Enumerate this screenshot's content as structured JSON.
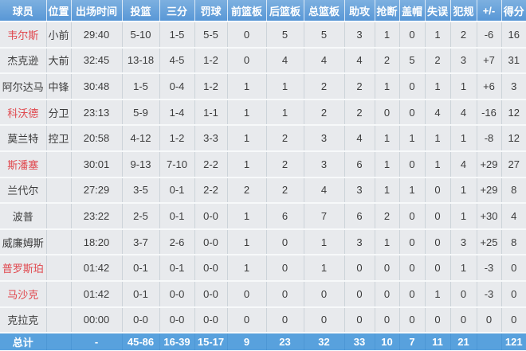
{
  "colors": {
    "header_bg_top": "#7db0e0",
    "header_bg_bottom": "#5897d6",
    "header_text": "#ffffff",
    "row_bg": "#e8eaed",
    "grid_line": "#ccd3d9",
    "row_gap": "#f7f9fa",
    "total_row_bg": "#58a1dd",
    "total_row_divider": "#4d97d5",
    "text_color": "#3c3c3c",
    "red_name_color": "#e0474d"
  },
  "table": {
    "headers": [
      "球员",
      "位置",
      "出场时间",
      "投篮",
      "三分",
      "罚球",
      "前篮板",
      "后篮板",
      "总篮板",
      "助攻",
      "抢断",
      "盖帽",
      "失误",
      "犯规",
      "+/-",
      "得分"
    ],
    "column_keys": [
      "player",
      "position",
      "minutes",
      "field-goals",
      "three-pointers",
      "free-throws",
      "offensive-rebounds",
      "defensive-rebounds",
      "total-rebounds",
      "assists",
      "steals",
      "blocks",
      "turnovers",
      "fouls",
      "plus-minus",
      "points"
    ],
    "rows": [
      {
        "name_color": "red",
        "cells": [
          "韦尔斯",
          "小前",
          "29:40",
          "5-10",
          "1-5",
          "5-5",
          "0",
          "5",
          "5",
          "3",
          "1",
          "0",
          "1",
          "2",
          "-6",
          "16"
        ]
      },
      {
        "name_color": "normal",
        "cells": [
          "杰克逊",
          "大前",
          "32:45",
          "13-18",
          "4-5",
          "1-2",
          "0",
          "4",
          "4",
          "4",
          "2",
          "5",
          "2",
          "3",
          "+7",
          "31"
        ]
      },
      {
        "name_color": "normal",
        "cells": [
          "阿尔达马",
          "中锋",
          "30:48",
          "1-5",
          "0-4",
          "1-2",
          "1",
          "1",
          "2",
          "2",
          "1",
          "0",
          "1",
          "1",
          "+6",
          "3"
        ]
      },
      {
        "name_color": "red",
        "cells": [
          "科沃德",
          "分卫",
          "23:13",
          "5-9",
          "1-4",
          "1-1",
          "1",
          "1",
          "2",
          "2",
          "0",
          "0",
          "4",
          "4",
          "-16",
          "12"
        ]
      },
      {
        "name_color": "normal",
        "cells": [
          "莫兰特",
          "控卫",
          "20:58",
          "4-12",
          "1-2",
          "3-3",
          "1",
          "2",
          "3",
          "4",
          "1",
          "1",
          "1",
          "1",
          "-8",
          "12"
        ]
      },
      {
        "name_color": "red",
        "cells": [
          "斯潘塞",
          "",
          "30:01",
          "9-13",
          "7-10",
          "2-2",
          "1",
          "2",
          "3",
          "6",
          "1",
          "0",
          "1",
          "4",
          "+29",
          "27"
        ]
      },
      {
        "name_color": "normal",
        "cells": [
          "兰代尔",
          "",
          "27:29",
          "3-5",
          "0-1",
          "2-2",
          "2",
          "2",
          "4",
          "3",
          "1",
          "1",
          "0",
          "1",
          "+29",
          "8"
        ]
      },
      {
        "name_color": "normal",
        "cells": [
          "波普",
          "",
          "23:22",
          "2-5",
          "0-1",
          "0-0",
          "1",
          "6",
          "7",
          "6",
          "2",
          "0",
          "0",
          "1",
          "+30",
          "4"
        ]
      },
      {
        "name_color": "normal",
        "cells": [
          "威廉姆斯",
          "",
          "18:20",
          "3-7",
          "2-6",
          "0-0",
          "1",
          "0",
          "1",
          "3",
          "1",
          "0",
          "0",
          "3",
          "+25",
          "8"
        ]
      },
      {
        "name_color": "red",
        "cells": [
          "普罗斯珀",
          "",
          "01:42",
          "0-1",
          "0-1",
          "0-0",
          "1",
          "0",
          "1",
          "0",
          "0",
          "0",
          "0",
          "1",
          "-3",
          "0"
        ]
      },
      {
        "name_color": "red",
        "cells": [
          "马沙克",
          "",
          "01:42",
          "0-1",
          "0-0",
          "0-0",
          "0",
          "0",
          "0",
          "0",
          "0",
          "0",
          "1",
          "0",
          "-3",
          "0"
        ]
      },
      {
        "name_color": "normal",
        "cells": [
          "克拉克",
          "",
          "00:00",
          "0-0",
          "0-0",
          "0-0",
          "0",
          "0",
          "0",
          "0",
          "0",
          "0",
          "0",
          "0",
          "0",
          "0"
        ]
      }
    ],
    "total_row": {
      "cells": [
        "总计",
        "",
        "-",
        "45-86",
        "16-39",
        "15-17",
        "9",
        "23",
        "32",
        "33",
        "10",
        "7",
        "11",
        "21",
        "",
        "121"
      ]
    }
  }
}
